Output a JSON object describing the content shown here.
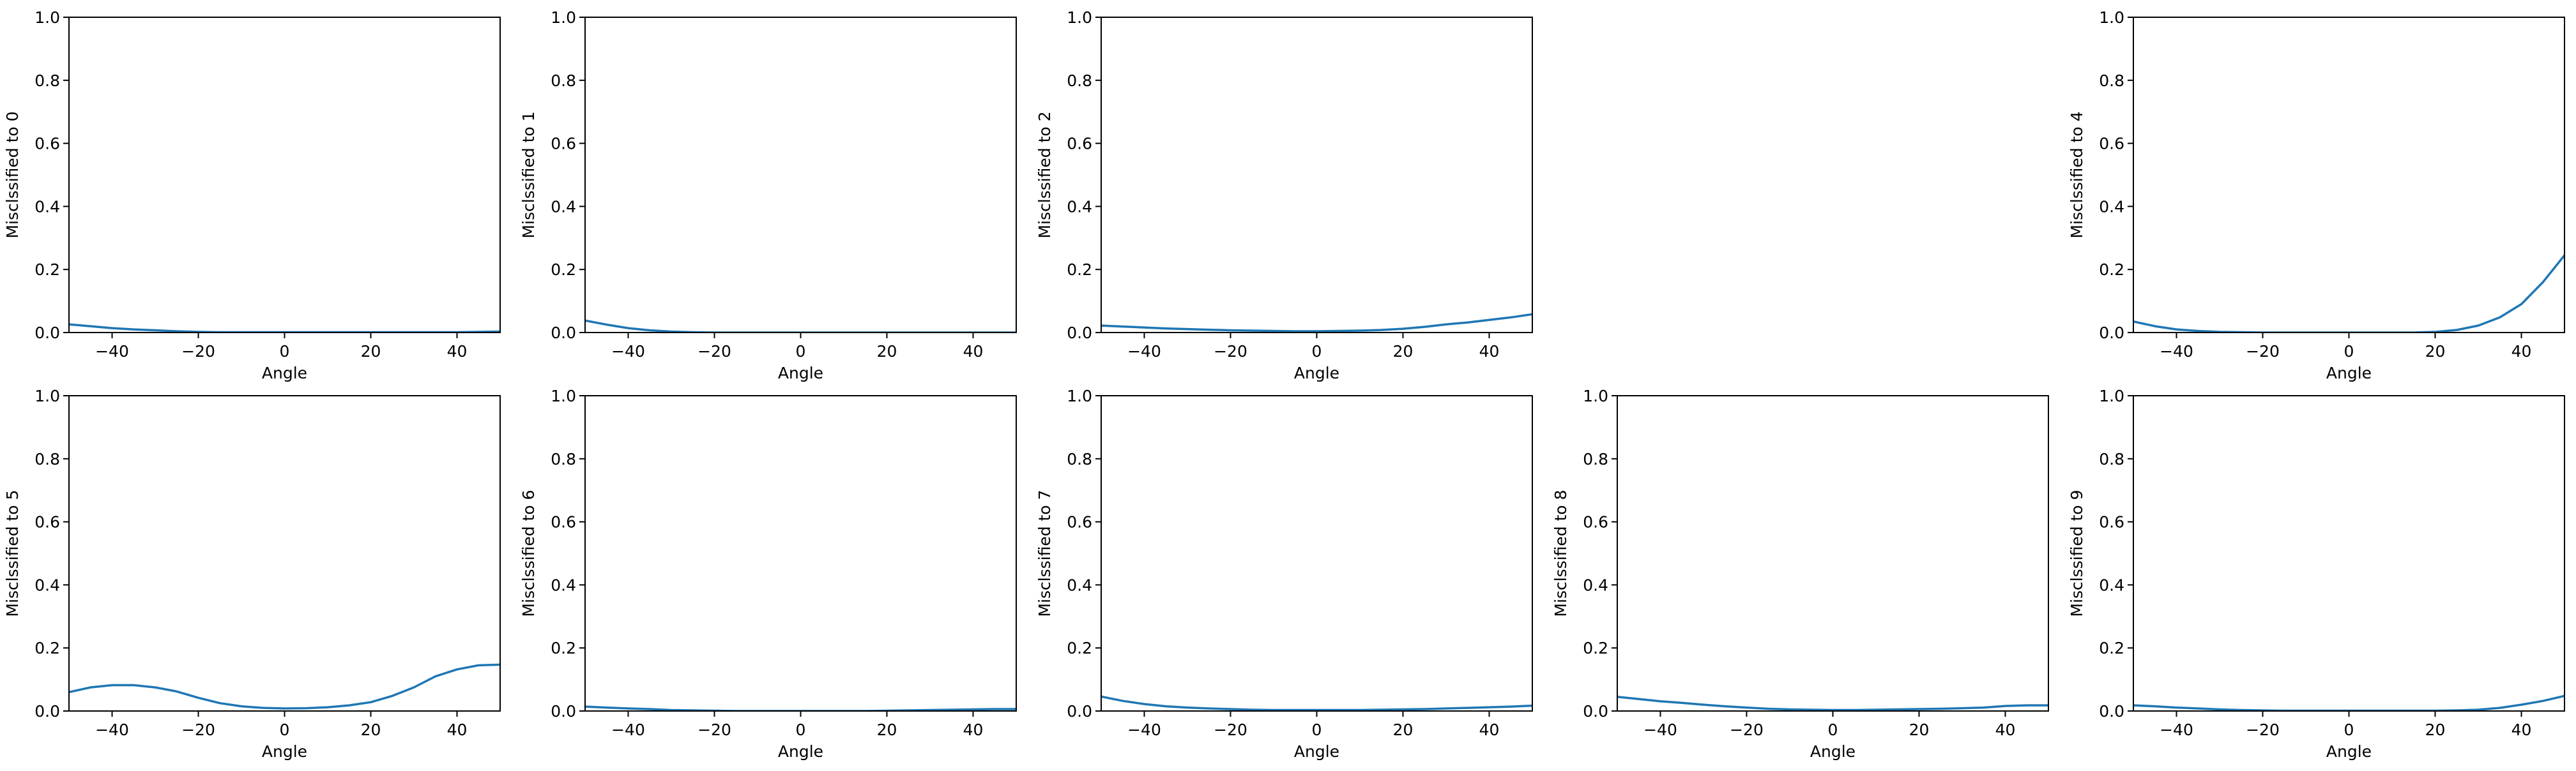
{
  "figure": {
    "background": "#ffffff",
    "line_color": "#1f77b4",
    "axes_color": "#000000"
  },
  "chart_data": [
    {
      "type": "line",
      "xlabel": "Angle",
      "ylabel": "Misclssified to 0",
      "xlim": [
        -50,
        50
      ],
      "ylim": [
        0,
        1
      ],
      "xticks": [
        -40,
        -20,
        0,
        20,
        40
      ],
      "xtick_labels": [
        "−40",
        "−20",
        "0",
        "20",
        "40"
      ],
      "yticks": [
        0,
        0.2,
        0.4,
        0.6,
        0.8,
        1.0
      ],
      "ytick_labels": [
        "0.0",
        "0.2",
        "0.4",
        "0.6",
        "0.8",
        "1.0"
      ],
      "series": [
        {
          "x": [
            -50,
            -45,
            -40,
            -35,
            -30,
            -25,
            -20,
            -15,
            -10,
            -5,
            0,
            5,
            10,
            15,
            20,
            25,
            30,
            35,
            40,
            45,
            50
          ],
          "y": [
            0.026,
            0.02,
            0.014,
            0.01,
            0.007,
            0.004,
            0.002,
            0.001,
            0.001,
            0.001,
            0.001,
            0.001,
            0.001,
            0.001,
            0.001,
            0.001,
            0.001,
            0.001,
            0.001,
            0.002,
            0.003
          ]
        }
      ]
    },
    {
      "type": "line",
      "xlabel": "Angle",
      "ylabel": "Misclssified to 1",
      "xlim": [
        -50,
        50
      ],
      "ylim": [
        0,
        1
      ],
      "xticks": [
        -40,
        -20,
        0,
        20,
        40
      ],
      "xtick_labels": [
        "−40",
        "−20",
        "0",
        "20",
        "40"
      ],
      "yticks": [
        0,
        0.2,
        0.4,
        0.6,
        0.8,
        1.0
      ],
      "ytick_labels": [
        "0.0",
        "0.2",
        "0.4",
        "0.6",
        "0.8",
        "1.0"
      ],
      "series": [
        {
          "x": [
            -50,
            -45,
            -40,
            -35,
            -30,
            -25,
            -20,
            -15,
            -10,
            -5,
            0,
            5,
            10,
            15,
            20,
            25,
            30,
            35,
            40,
            45,
            50
          ],
          "y": [
            0.038,
            0.025,
            0.014,
            0.007,
            0.003,
            0.001,
            0.0,
            0.0,
            0.0,
            0.0,
            0.0,
            0.0,
            0.0,
            0.0,
            0.0,
            0.0,
            0.0,
            0.0,
            0.0,
            0.0,
            0.0
          ]
        }
      ]
    },
    {
      "type": "line",
      "xlabel": "Angle",
      "ylabel": "Misclssified to 2",
      "xlim": [
        -50,
        50
      ],
      "ylim": [
        0,
        1
      ],
      "xticks": [
        -40,
        -20,
        0,
        20,
        40
      ],
      "xtick_labels": [
        "−40",
        "−20",
        "0",
        "20",
        "40"
      ],
      "yticks": [
        0,
        0.2,
        0.4,
        0.6,
        0.8,
        1.0
      ],
      "ytick_labels": [
        "0.0",
        "0.2",
        "0.4",
        "0.6",
        "0.8",
        "1.0"
      ],
      "series": [
        {
          "x": [
            -50,
            -45,
            -40,
            -35,
            -30,
            -25,
            -20,
            -15,
            -10,
            -5,
            0,
            5,
            10,
            15,
            20,
            25,
            30,
            35,
            40,
            45,
            50
          ],
          "y": [
            0.022,
            0.019,
            0.016,
            0.013,
            0.011,
            0.009,
            0.007,
            0.006,
            0.005,
            0.004,
            0.004,
            0.005,
            0.006,
            0.008,
            0.012,
            0.018,
            0.026,
            0.032,
            0.04,
            0.048,
            0.058
          ]
        }
      ]
    },
    null,
    {
      "type": "line",
      "xlabel": "Angle",
      "ylabel": "Misclssified to 4",
      "xlim": [
        -50,
        50
      ],
      "ylim": [
        0,
        1
      ],
      "xticks": [
        -40,
        -20,
        0,
        20,
        40
      ],
      "xtick_labels": [
        "−40",
        "−20",
        "0",
        "20",
        "40"
      ],
      "yticks": [
        0,
        0.2,
        0.4,
        0.6,
        0.8,
        1.0
      ],
      "ytick_labels": [
        "0.0",
        "0.2",
        "0.4",
        "0.6",
        "0.8",
        "1.0"
      ],
      "series": [
        {
          "x": [
            -50,
            -45,
            -40,
            -35,
            -30,
            -25,
            -20,
            -15,
            -10,
            -5,
            0,
            5,
            10,
            15,
            20,
            25,
            30,
            35,
            40,
            45,
            50
          ],
          "y": [
            0.035,
            0.02,
            0.01,
            0.005,
            0.002,
            0.001,
            0.0,
            0.0,
            0.0,
            0.0,
            0.0,
            0.0,
            0.0,
            0.0,
            0.002,
            0.008,
            0.022,
            0.048,
            0.09,
            0.16,
            0.245
          ]
        }
      ]
    },
    {
      "type": "line",
      "xlabel": "Angle",
      "ylabel": "Misclssified to 5",
      "xlim": [
        -50,
        50
      ],
      "ylim": [
        0,
        1
      ],
      "xticks": [
        -40,
        -20,
        0,
        20,
        40
      ],
      "xtick_labels": [
        "−40",
        "−20",
        "0",
        "20",
        "40"
      ],
      "yticks": [
        0,
        0.2,
        0.4,
        0.6,
        0.8,
        1.0
      ],
      "ytick_labels": [
        "0.0",
        "0.2",
        "0.4",
        "0.6",
        "0.8",
        "1.0"
      ],
      "series": [
        {
          "x": [
            -50,
            -45,
            -40,
            -35,
            -30,
            -25,
            -20,
            -15,
            -10,
            -5,
            0,
            5,
            10,
            15,
            20,
            25,
            30,
            35,
            40,
            45,
            50
          ],
          "y": [
            0.06,
            0.075,
            0.082,
            0.082,
            0.075,
            0.062,
            0.042,
            0.025,
            0.015,
            0.01,
            0.008,
            0.009,
            0.012,
            0.018,
            0.028,
            0.048,
            0.075,
            0.11,
            0.132,
            0.145,
            0.147
          ]
        }
      ]
    },
    {
      "type": "line",
      "xlabel": "Angle",
      "ylabel": "Misclssified to 6",
      "xlim": [
        -50,
        50
      ],
      "ylim": [
        0,
        1
      ],
      "xticks": [
        -40,
        -20,
        0,
        20,
        40
      ],
      "xtick_labels": [
        "−40",
        "−20",
        "0",
        "20",
        "40"
      ],
      "yticks": [
        0,
        0.2,
        0.4,
        0.6,
        0.8,
        1.0
      ],
      "ytick_labels": [
        "0.0",
        "0.2",
        "0.4",
        "0.6",
        "0.8",
        "1.0"
      ],
      "series": [
        {
          "x": [
            -50,
            -45,
            -40,
            -35,
            -30,
            -25,
            -20,
            -15,
            -10,
            -5,
            0,
            5,
            10,
            15,
            20,
            25,
            30,
            35,
            40,
            45,
            50
          ],
          "y": [
            0.014,
            0.011,
            0.008,
            0.006,
            0.003,
            0.002,
            0.001,
            0.0,
            0.0,
            0.0,
            0.0,
            0.0,
            0.0,
            0.0,
            0.001,
            0.002,
            0.003,
            0.004,
            0.005,
            0.006,
            0.006
          ]
        }
      ]
    },
    {
      "type": "line",
      "xlabel": "Angle",
      "ylabel": "Misclssified to 7",
      "xlim": [
        -50,
        50
      ],
      "ylim": [
        0,
        1
      ],
      "xticks": [
        -40,
        -20,
        0,
        20,
        40
      ],
      "xtick_labels": [
        "−40",
        "−20",
        "0",
        "20",
        "40"
      ],
      "yticks": [
        0,
        0.2,
        0.4,
        0.6,
        0.8,
        1.0
      ],
      "ytick_labels": [
        "0.0",
        "0.2",
        "0.4",
        "0.6",
        "0.8",
        "1.0"
      ],
      "series": [
        {
          "x": [
            -50,
            -45,
            -40,
            -35,
            -30,
            -25,
            -20,
            -15,
            -10,
            -5,
            0,
            5,
            10,
            15,
            20,
            25,
            30,
            35,
            40,
            45,
            50
          ],
          "y": [
            0.046,
            0.032,
            0.022,
            0.015,
            0.011,
            0.008,
            0.006,
            0.004,
            0.003,
            0.003,
            0.003,
            0.003,
            0.003,
            0.004,
            0.005,
            0.006,
            0.008,
            0.01,
            0.012,
            0.014,
            0.017
          ]
        }
      ]
    },
    {
      "type": "line",
      "xlabel": "Angle",
      "ylabel": "Misclssified to 8",
      "xlim": [
        -50,
        50
      ],
      "ylim": [
        0,
        1
      ],
      "xticks": [
        -40,
        -20,
        0,
        20,
        40
      ],
      "xtick_labels": [
        "−40",
        "−20",
        "0",
        "20",
        "40"
      ],
      "yticks": [
        0,
        0.2,
        0.4,
        0.6,
        0.8,
        1.0
      ],
      "ytick_labels": [
        "0.0",
        "0.2",
        "0.4",
        "0.6",
        "0.8",
        "1.0"
      ],
      "series": [
        {
          "x": [
            -50,
            -45,
            -40,
            -35,
            -30,
            -25,
            -20,
            -15,
            -10,
            -5,
            0,
            5,
            10,
            15,
            20,
            25,
            30,
            35,
            40,
            45,
            50
          ],
          "y": [
            0.045,
            0.038,
            0.031,
            0.026,
            0.02,
            0.015,
            0.011,
            0.007,
            0.005,
            0.004,
            0.003,
            0.003,
            0.004,
            0.005,
            0.006,
            0.007,
            0.009,
            0.011,
            0.016,
            0.018,
            0.018
          ]
        }
      ]
    },
    {
      "type": "line",
      "xlabel": "Angle",
      "ylabel": "Misclssified to 9",
      "xlim": [
        -50,
        50
      ],
      "ylim": [
        0,
        1
      ],
      "xticks": [
        -40,
        -20,
        0,
        20,
        40
      ],
      "xtick_labels": [
        "−40",
        "−20",
        "0",
        "20",
        "40"
      ],
      "yticks": [
        0,
        0.2,
        0.4,
        0.6,
        0.8,
        1.0
      ],
      "ytick_labels": [
        "0.0",
        "0.2",
        "0.4",
        "0.6",
        "0.8",
        "1.0"
      ],
      "series": [
        {
          "x": [
            -50,
            -45,
            -40,
            -35,
            -30,
            -25,
            -20,
            -15,
            -10,
            -5,
            0,
            5,
            10,
            15,
            20,
            25,
            30,
            35,
            40,
            45,
            50
          ],
          "y": [
            0.018,
            0.015,
            0.011,
            0.008,
            0.005,
            0.003,
            0.002,
            0.001,
            0.001,
            0.001,
            0.001,
            0.001,
            0.001,
            0.001,
            0.001,
            0.002,
            0.004,
            0.01,
            0.02,
            0.032,
            0.048
          ]
        }
      ]
    }
  ]
}
